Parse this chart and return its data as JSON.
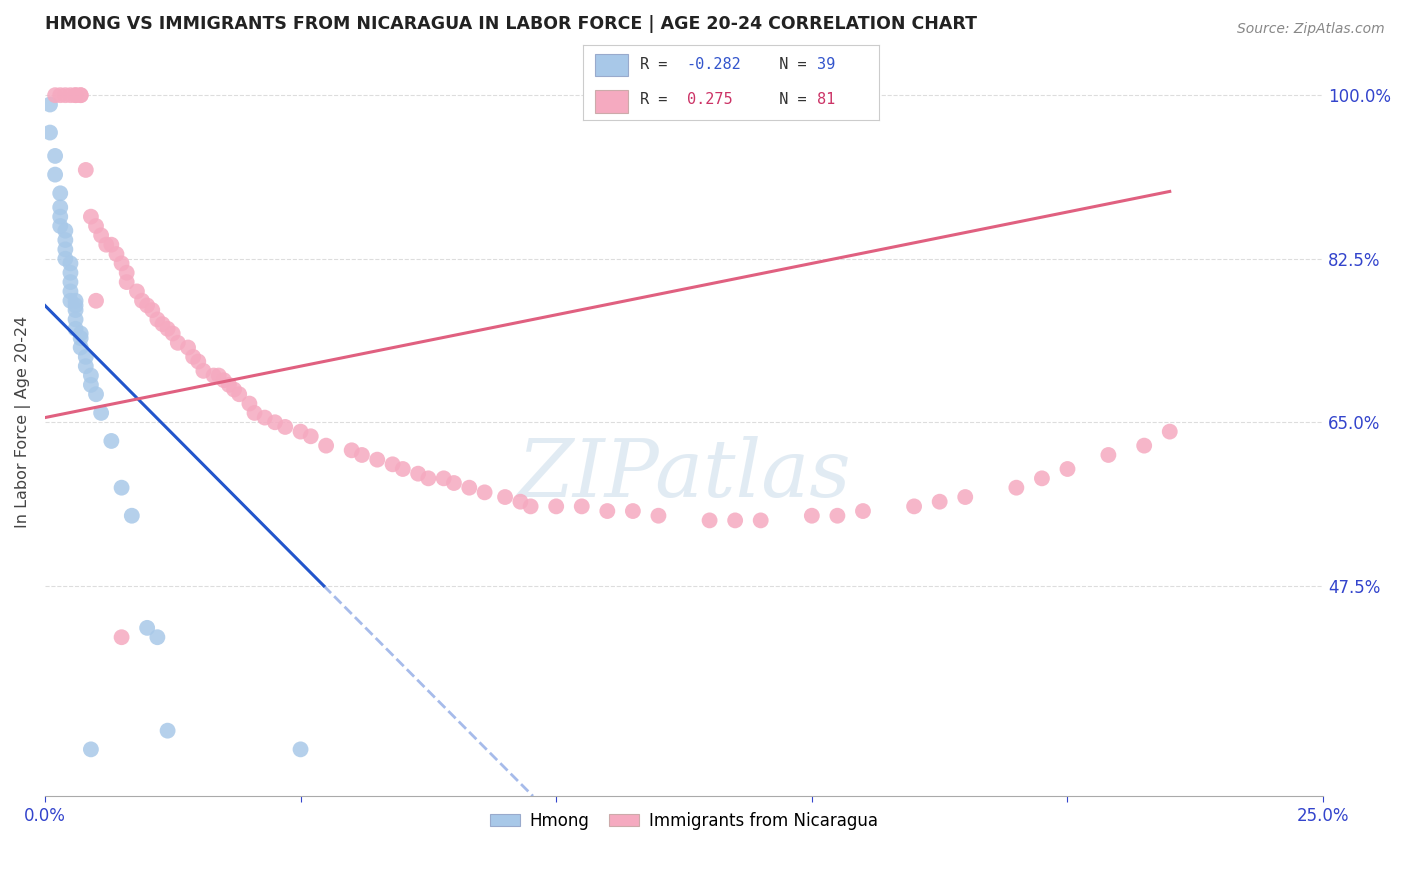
{
  "title": "HMONG VS IMMIGRANTS FROM NICARAGUA IN LABOR FORCE | AGE 20-24 CORRELATION CHART",
  "source": "Source: ZipAtlas.com",
  "ylabel": "In Labor Force | Age 20-24",
  "xlim": [
    0.0,
    0.25
  ],
  "ylim": [
    0.25,
    1.05
  ],
  "hmong_color": "#a8c8e8",
  "nicaragua_color": "#f5aac0",
  "hmong_line_color": "#2255cc",
  "nicaragua_line_color": "#e06080",
  "hmong_R": -0.282,
  "hmong_N": 39,
  "nicaragua_R": 0.275,
  "nicaragua_N": 81,
  "watermark": "ZIPatlas",
  "grid_color": "#dddddd",
  "ytick_vals": [
    0.475,
    0.65,
    0.825,
    1.0
  ],
  "ytick_labels": [
    "47.5%",
    "65.0%",
    "82.5%",
    "100.0%"
  ],
  "xtick_vals": [
    0.0,
    0.05,
    0.1,
    0.15,
    0.2,
    0.25
  ],
  "xtick_labels": [
    "0.0%",
    "",
    "",
    "",
    "",
    "25.0%"
  ],
  "hmong_x": [
    0.001,
    0.001,
    0.002,
    0.002,
    0.003,
    0.003,
    0.003,
    0.003,
    0.004,
    0.004,
    0.004,
    0.004,
    0.005,
    0.005,
    0.005,
    0.005,
    0.005,
    0.006,
    0.006,
    0.006,
    0.006,
    0.006,
    0.007,
    0.007,
    0.007,
    0.008,
    0.008,
    0.009,
    0.009,
    0.01,
    0.011,
    0.013,
    0.015,
    0.017,
    0.02,
    0.022,
    0.024,
    0.009,
    0.05
  ],
  "hmong_y": [
    0.99,
    0.96,
    0.935,
    0.915,
    0.895,
    0.88,
    0.87,
    0.86,
    0.855,
    0.845,
    0.835,
    0.825,
    0.82,
    0.81,
    0.8,
    0.79,
    0.78,
    0.78,
    0.775,
    0.77,
    0.76,
    0.75,
    0.745,
    0.74,
    0.73,
    0.72,
    0.71,
    0.7,
    0.69,
    0.68,
    0.66,
    0.63,
    0.58,
    0.55,
    0.43,
    0.42,
    0.32,
    0.3,
    0.3
  ],
  "nicaragua_x": [
    0.002,
    0.003,
    0.004,
    0.005,
    0.006,
    0.006,
    0.007,
    0.007,
    0.008,
    0.009,
    0.01,
    0.011,
    0.012,
    0.013,
    0.014,
    0.015,
    0.016,
    0.016,
    0.018,
    0.019,
    0.02,
    0.021,
    0.022,
    0.023,
    0.024,
    0.025,
    0.026,
    0.028,
    0.029,
    0.03,
    0.031,
    0.033,
    0.034,
    0.035,
    0.036,
    0.037,
    0.038,
    0.04,
    0.041,
    0.043,
    0.045,
    0.047,
    0.05,
    0.052,
    0.055,
    0.06,
    0.062,
    0.065,
    0.068,
    0.07,
    0.073,
    0.075,
    0.078,
    0.08,
    0.083,
    0.086,
    0.09,
    0.093,
    0.095,
    0.1,
    0.105,
    0.11,
    0.115,
    0.12,
    0.13,
    0.135,
    0.14,
    0.15,
    0.155,
    0.16,
    0.17,
    0.175,
    0.18,
    0.19,
    0.195,
    0.2,
    0.208,
    0.215,
    0.22,
    0.01,
    0.015
  ],
  "nicaragua_y": [
    1.0,
    1.0,
    1.0,
    1.0,
    1.0,
    1.0,
    1.0,
    1.0,
    0.92,
    0.87,
    0.86,
    0.85,
    0.84,
    0.84,
    0.83,
    0.82,
    0.81,
    0.8,
    0.79,
    0.78,
    0.775,
    0.77,
    0.76,
    0.755,
    0.75,
    0.745,
    0.735,
    0.73,
    0.72,
    0.715,
    0.705,
    0.7,
    0.7,
    0.695,
    0.69,
    0.685,
    0.68,
    0.67,
    0.66,
    0.655,
    0.65,
    0.645,
    0.64,
    0.635,
    0.625,
    0.62,
    0.615,
    0.61,
    0.605,
    0.6,
    0.595,
    0.59,
    0.59,
    0.585,
    0.58,
    0.575,
    0.57,
    0.565,
    0.56,
    0.56,
    0.56,
    0.555,
    0.555,
    0.55,
    0.545,
    0.545,
    0.545,
    0.55,
    0.55,
    0.555,
    0.56,
    0.565,
    0.57,
    0.58,
    0.59,
    0.6,
    0.615,
    0.625,
    0.64,
    0.78,
    0.42
  ]
}
